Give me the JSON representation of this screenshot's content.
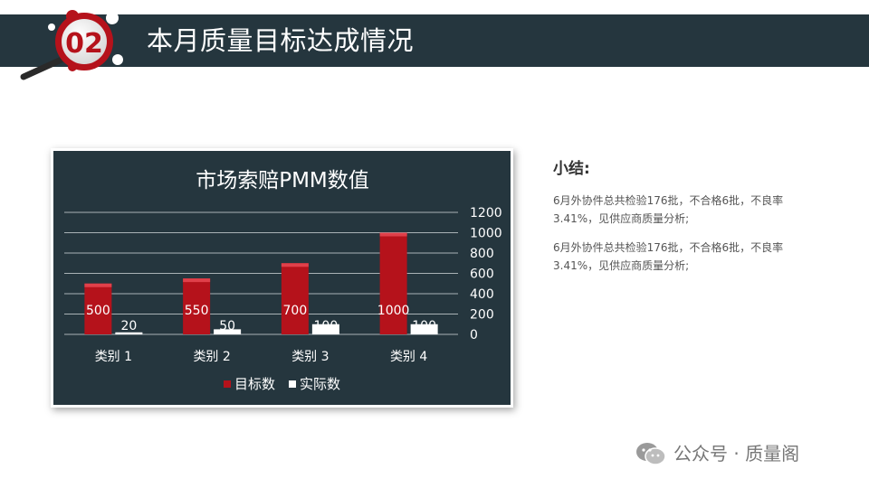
{
  "slide": {
    "number": "02",
    "title": "本月质量目标达成情况"
  },
  "summary": {
    "heading": "小结:",
    "paragraphs": [
      "6月外协件总共检验176批，不合格6批，不良率3.41%，见供应商质量分析;",
      "6月外协件总共检验176批，不合格6批，不良率3.41%，见供应商质量分析;"
    ]
  },
  "watermark": {
    "text": "公众号 · 质量阁",
    "icon": "wechat-icon"
  },
  "colors": {
    "header_bg": "#25363e",
    "accent_red": "#b5121b",
    "bar_white": "#ffffff"
  },
  "chart_data": {
    "type": "bar",
    "title": "市场索赔PMM数值",
    "categories": [
      "类别 1",
      "类别 2",
      "类别 3",
      "类别 4"
    ],
    "series": [
      {
        "name": "目标数",
        "values": [
          500,
          550,
          700,
          1000
        ],
        "color": "#b5121b"
      },
      {
        "name": "实际数",
        "values": [
          20,
          50,
          100,
          100
        ],
        "color": "#ffffff"
      }
    ],
    "ylim": [
      0,
      1200
    ],
    "yticks": [
      0,
      200,
      400,
      600,
      800,
      1000,
      1200
    ],
    "y_axis_side": "right",
    "grid": true,
    "legend": "bottom",
    "data_labels": true
  }
}
